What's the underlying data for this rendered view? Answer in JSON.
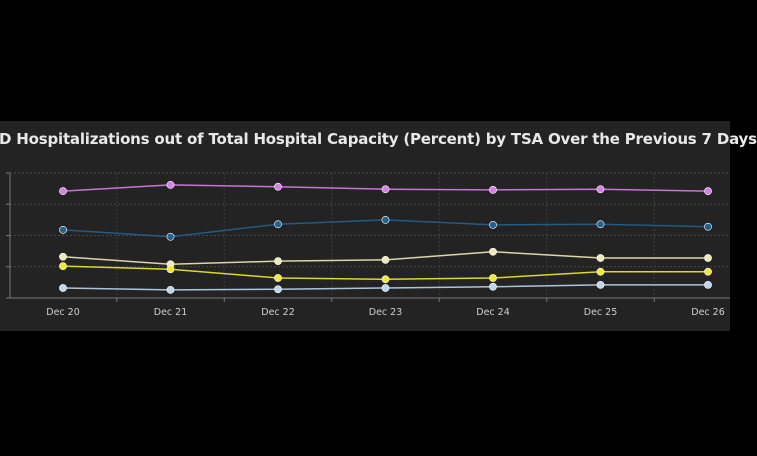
{
  "chart_data": {
    "type": "line",
    "title": "D Hospitalizations out of Total Hospital Capacity (Percent) by TSA Over the Previous 7 Days",
    "xlabel": "",
    "ylabel": "",
    "categories": [
      "Dec 20",
      "Dec 21",
      "Dec 22",
      "Dec 23",
      "Dec 24",
      "Dec 25",
      "Dec 26"
    ],
    "ylim": [
      0,
      20
    ],
    "y_gridlines": [
      0,
      5,
      10,
      15,
      20
    ],
    "grid": true,
    "series": [
      {
        "color": "#d87ee8",
        "values": [
          17.1,
          18.1,
          17.8,
          17.4,
          17.3,
          17.4,
          17.1
        ]
      },
      {
        "color": "#23628f",
        "values": [
          10.9,
          9.8,
          11.8,
          12.5,
          11.7,
          11.8,
          11.4
        ]
      },
      {
        "color": "#eeeab8",
        "values": [
          6.6,
          5.4,
          5.9,
          6.1,
          7.4,
          6.4,
          6.4
        ]
      },
      {
        "color": "#f2ea2e",
        "values": [
          5.1,
          4.6,
          3.2,
          3.0,
          3.2,
          4.2,
          4.2
        ]
      },
      {
        "color": "#bcd6ec",
        "values": [
          1.6,
          1.3,
          1.4,
          1.6,
          1.8,
          2.1,
          2.1
        ]
      }
    ]
  }
}
